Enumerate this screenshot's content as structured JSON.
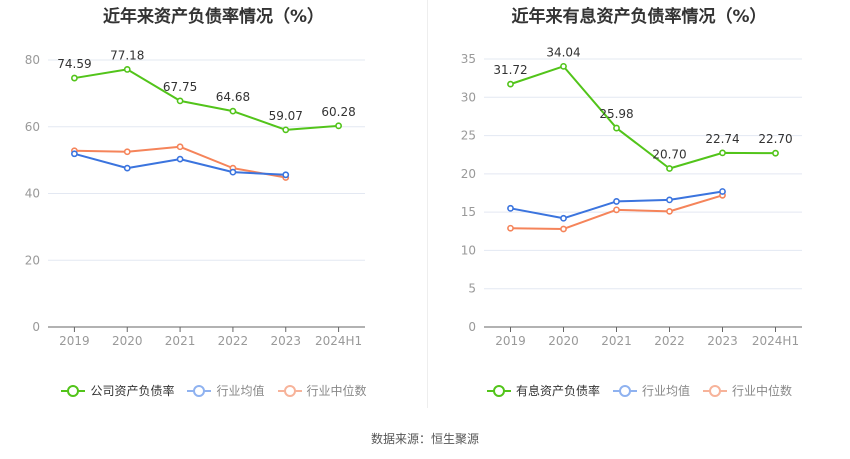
{
  "footer": {
    "source": "数据来源：恒生聚源"
  },
  "colors": {
    "company": "#52c41a",
    "avg": "#3b74de",
    "median": "#f5845a",
    "avg_legend": "#8fb2f0",
    "median_legend": "#f7b39a",
    "grid": "#e3e8f2",
    "axis": "#666666",
    "tick_text": "#999999",
    "label_text": "#333333"
  },
  "chart_data": [
    {
      "type": "line",
      "title": "近年来资产负债率情况（%）",
      "categories": [
        "2019",
        "2020",
        "2021",
        "2022",
        "2023",
        "2024H1"
      ],
      "ylim": [
        0,
        80
      ],
      "yticks": [
        0,
        20,
        40,
        60,
        80
      ],
      "grid": true,
      "legend_position": "bottom",
      "series": [
        {
          "name": "公司资产负债率",
          "key": "company",
          "values": [
            74.59,
            77.18,
            67.75,
            64.68,
            59.07,
            60.28
          ],
          "labels": [
            "74.59",
            "77.18",
            "67.75",
            "64.68",
            "59.07",
            "60.28"
          ]
        },
        {
          "name": "行业均值",
          "key": "avg",
          "values": [
            51.9,
            47.6,
            50.3,
            46.4,
            45.6,
            null
          ]
        },
        {
          "name": "行业中位数",
          "key": "median",
          "values": [
            52.8,
            52.5,
            54.0,
            47.6,
            44.8,
            null
          ]
        }
      ]
    },
    {
      "type": "line",
      "title": "近年来有息资产负债率情况（%）",
      "categories": [
        "2019",
        "2020",
        "2021",
        "2022",
        "2023",
        "2024H1"
      ],
      "ylim": [
        0,
        35
      ],
      "yticks": [
        0,
        5,
        10,
        15,
        20,
        25,
        30,
        35
      ],
      "grid": true,
      "legend_position": "bottom",
      "series": [
        {
          "name": "有息资产负债率",
          "key": "company",
          "values": [
            31.72,
            34.04,
            25.98,
            20.7,
            22.74,
            22.7
          ],
          "labels": [
            "31.72",
            "34.04",
            "25.98",
            "20.70",
            "22.74",
            "22.70"
          ]
        },
        {
          "name": "行业均值",
          "key": "avg",
          "values": [
            15.5,
            14.2,
            16.4,
            16.6,
            17.7,
            null
          ]
        },
        {
          "name": "行业中位数",
          "key": "median",
          "values": [
            12.9,
            12.8,
            15.3,
            15.1,
            17.2,
            null
          ]
        }
      ]
    }
  ]
}
